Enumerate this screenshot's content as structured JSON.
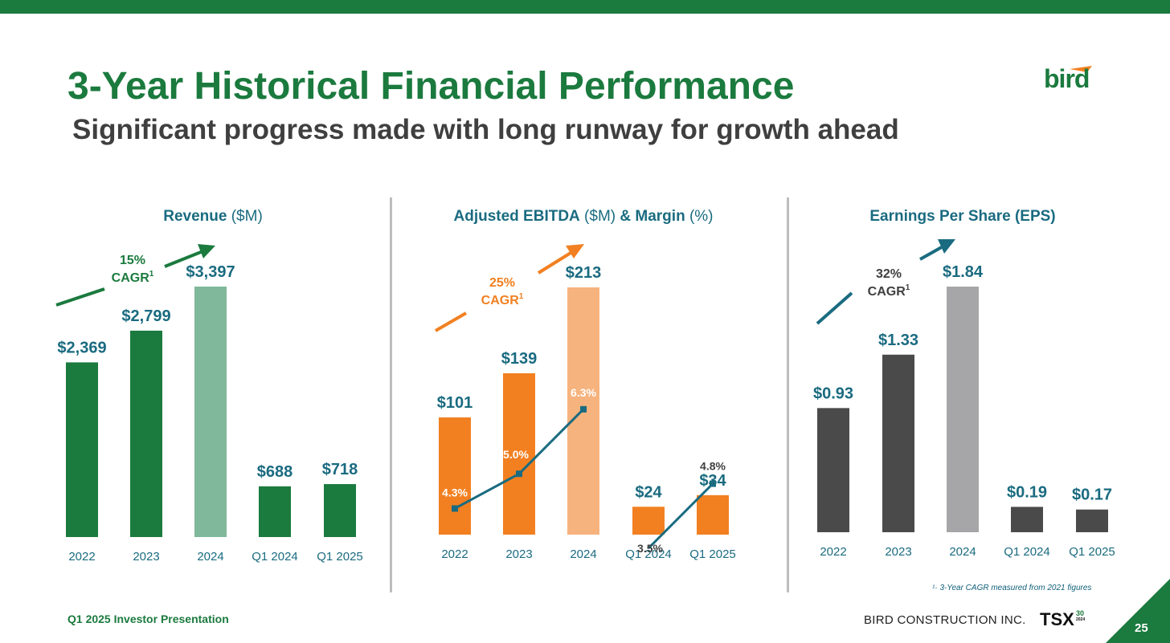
{
  "slide": {
    "title": "3-Year Historical Financial Performance",
    "subtitle": "Significant progress made with long runway for growth ahead",
    "logo_text": "bird",
    "footnote": "¹· 3-Year CAGR measured from 2021 figures",
    "footer_left": "Q1 2025 Investor Presentation",
    "footer_company": "BIRD CONSTRUCTION INC.",
    "tsx_label": "TSX",
    "tsx_sup_num": "30",
    "tsx_sup_year": "2024",
    "page_number": "25"
  },
  "colors": {
    "green": "#1b7a3e",
    "green_light": "#7fb89a",
    "orange": "#f28021",
    "orange_light": "#f6b37e",
    "gray_dark": "#4a4a4a",
    "gray_light": "#a6a6a8",
    "teal": "#1a6b80"
  },
  "chart_data": [
    {
      "type": "bar",
      "title_bold": "Revenue",
      "title_rest": " ($M)",
      "categories": [
        "2022",
        "2023",
        "2024",
        "Q1 2024",
        "Q1 2025"
      ],
      "values": [
        2369,
        2799,
        3397,
        688,
        718
      ],
      "value_labels": [
        "$2,369",
        "$2,799",
        "$3,397",
        "$688",
        "$718"
      ],
      "ylim": [
        0,
        3397
      ],
      "cagr_pct": "15%",
      "cagr_label": "CAGR",
      "cagr_sup": "1"
    },
    {
      "type": "bar",
      "title_bold": "Adjusted EBITDA",
      "title_mid": " ($M) ",
      "title_bold2": "& Margin",
      "title_rest": " (%)",
      "categories": [
        "2022",
        "2023",
        "2024",
        "Q1 2024",
        "Q1 2025"
      ],
      "values": [
        101,
        139,
        213,
        24,
        34
      ],
      "value_labels": [
        "$101",
        "$139",
        "$213",
        "$24",
        "$34"
      ],
      "ylim": [
        0,
        213
      ],
      "margin_values": [
        4.3,
        5.0,
        6.3,
        3.5,
        4.8
      ],
      "margin_labels": [
        "4.3%",
        "5.0%",
        "6.3%",
        "3.5%",
        "4.8%"
      ],
      "cagr_pct": "25%",
      "cagr_label": "CAGR",
      "cagr_sup": "1"
    },
    {
      "type": "bar",
      "title_bold": "Earnings Per Share (EPS)",
      "title_rest": "",
      "categories": [
        "2022",
        "2023",
        "2024",
        "Q1 2024",
        "Q1 2025"
      ],
      "values": [
        0.93,
        1.33,
        1.84,
        0.19,
        0.17
      ],
      "value_labels": [
        "$0.93",
        "$1.33",
        "$1.84",
        "$0.19",
        "$0.17"
      ],
      "ylim": [
        0,
        1.84
      ],
      "cagr_pct": "32%",
      "cagr_label": "CAGR",
      "cagr_sup": "1"
    }
  ]
}
